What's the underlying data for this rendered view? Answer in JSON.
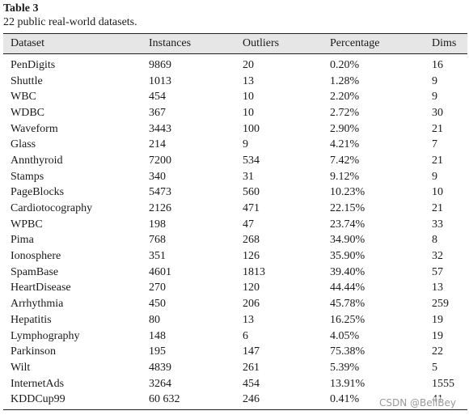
{
  "caption": {
    "title": "Table 3",
    "subtitle": "22 public real-world datasets."
  },
  "table": {
    "headers": [
      "Dataset",
      "Instances",
      "Outliers",
      "Percentage",
      "Dims"
    ],
    "rows": [
      [
        "PenDigits",
        "9869",
        "20",
        "0.20%",
        "16"
      ],
      [
        "Shuttle",
        "1013",
        "13",
        "1.28%",
        "9"
      ],
      [
        "WBC",
        "454",
        "10",
        "2.20%",
        "9"
      ],
      [
        "WDBC",
        "367",
        "10",
        "2.72%",
        "30"
      ],
      [
        "Waveform",
        "3443",
        "100",
        "2.90%",
        "21"
      ],
      [
        "Glass",
        "214",
        "9",
        "4.21%",
        "7"
      ],
      [
        "Annthyroid",
        "7200",
        "534",
        "7.42%",
        "21"
      ],
      [
        "Stamps",
        "340",
        "31",
        "9.12%",
        "9"
      ],
      [
        "PageBlocks",
        "5473",
        "560",
        "10.23%",
        "10"
      ],
      [
        "Cardiotocography",
        "2126",
        "471",
        "22.15%",
        "21"
      ],
      [
        "WPBC",
        "198",
        "47",
        "23.74%",
        "33"
      ],
      [
        "Pima",
        "768",
        "268",
        "34.90%",
        "8"
      ],
      [
        "Ionosphere",
        "351",
        "126",
        "35.90%",
        "32"
      ],
      [
        "SpamBase",
        "4601",
        "1813",
        "39.40%",
        "57"
      ],
      [
        "HeartDisease",
        "270",
        "120",
        "44.44%",
        "13"
      ],
      [
        "Arrhythmia",
        "450",
        "206",
        "45.78%",
        "259"
      ],
      [
        "Hepatitis",
        "80",
        "13",
        "16.25%",
        "19"
      ],
      [
        "Lymphography",
        "148",
        "6",
        "4.05%",
        "19"
      ],
      [
        "Parkinson",
        "195",
        "147",
        "75.38%",
        "22"
      ],
      [
        "Wilt",
        "4839",
        "261",
        "5.39%",
        "5"
      ],
      [
        "InternetAds",
        "3264",
        "454",
        "13.91%",
        "1555"
      ],
      [
        "KDDCup99",
        "60 632",
        "246",
        "0.41%",
        "41"
      ]
    ]
  },
  "watermark": "CSDN @BellBey"
}
